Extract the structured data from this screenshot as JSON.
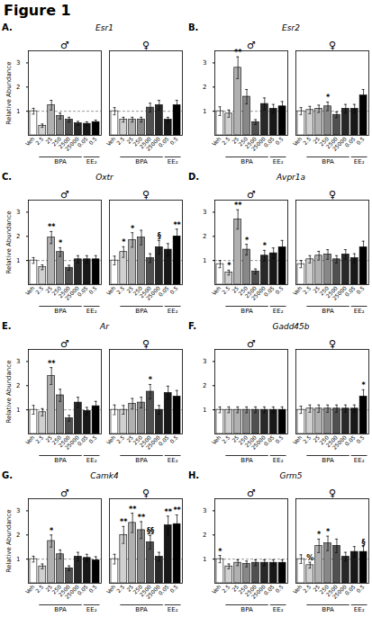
{
  "title": "Figure 1",
  "chart_data": [
    {
      "type": "bar",
      "title": "Esr1",
      "panel_label": "A.",
      "ylabel": "Relative Abundance",
      "categories": [
        "Veh",
        "2.5",
        "25",
        "250",
        "2500",
        "25000",
        "0.05",
        "0.5"
      ],
      "colors": [
        "white",
        "#d0d0d0",
        "#b0b0b0",
        "#888888",
        "#505050",
        "#282828",
        "#181818",
        "black"
      ],
      "series": [
        {
          "name": "♂",
          "values": [
            1.0,
            0.4,
            1.25,
            0.8,
            0.65,
            0.5,
            0.48,
            0.55
          ],
          "errors": [
            0.12,
            0.07,
            0.2,
            0.12,
            0.1,
            0.08,
            0.08,
            0.08
          ],
          "sig_labels": [
            null,
            null,
            null,
            null,
            null,
            null,
            null,
            null
          ]
        },
        {
          "name": "♀",
          "values": [
            1.0,
            0.65,
            0.65,
            0.65,
            1.15,
            1.25,
            0.65,
            1.25
          ],
          "errors": [
            0.15,
            0.1,
            0.1,
            0.1,
            0.18,
            0.2,
            0.1,
            0.2
          ],
          "sig_labels": [
            null,
            null,
            null,
            null,
            null,
            null,
            null,
            null
          ]
        }
      ],
      "brackets": [
        {
          "label": "BPA",
          "from": "2.5",
          "to": "25000"
        },
        {
          "label": "EE₂",
          "from": "0.05",
          "to": "0.5"
        }
      ],
      "reference_line": 1.0,
      "ylim": [
        0,
        3.5
      ],
      "yticks": [
        1,
        2,
        3
      ]
    },
    {
      "type": "bar",
      "title": "Esr2",
      "panel_label": "B.",
      "categories": [
        "Veh",
        "2.5",
        "25",
        "250",
        "2500",
        "25000",
        "0.05",
        "0.5"
      ],
      "colors": [
        "white",
        "#d0d0d0",
        "#b0b0b0",
        "#888888",
        "#505050",
        "#282828",
        "#181818",
        "black"
      ],
      "series": [
        {
          "name": "♂",
          "values": [
            1.0,
            0.9,
            2.8,
            1.6,
            0.55,
            1.3,
            1.1,
            1.2
          ],
          "errors": [
            0.18,
            0.15,
            0.45,
            0.3,
            0.1,
            0.25,
            0.18,
            0.2
          ],
          "sig_labels": [
            null,
            null,
            "**",
            null,
            null,
            null,
            null,
            null
          ]
        },
        {
          "name": "♀",
          "values": [
            1.0,
            1.05,
            1.1,
            1.2,
            0.85,
            1.1,
            1.1,
            1.65
          ],
          "errors": [
            0.15,
            0.15,
            0.15,
            0.18,
            0.12,
            0.18,
            0.18,
            0.25
          ],
          "sig_labels": [
            null,
            null,
            null,
            "*",
            null,
            null,
            null,
            null
          ]
        }
      ],
      "brackets": [
        {
          "label": "BPA",
          "from": "2.5",
          "to": "25000"
        },
        {
          "label": "EE₂",
          "from": "0.05",
          "to": "0.5"
        }
      ],
      "reference_line": 1.0,
      "ylim": [
        0,
        3.5
      ],
      "yticks": [
        1,
        2,
        3
      ]
    },
    {
      "type": "bar",
      "title": "Oxtr",
      "panel_label": "C.",
      "ylabel": "Relative Abundance",
      "categories": [
        "Veh",
        "2.5",
        "25",
        "250",
        "2500",
        "25000",
        "0.05",
        "0.5"
      ],
      "colors": [
        "white",
        "#d0d0d0",
        "#b0b0b0",
        "#888888",
        "#505050",
        "#282828",
        "#181818",
        "black"
      ],
      "series": [
        {
          "name": "♂",
          "values": [
            1.0,
            0.72,
            1.95,
            1.35,
            0.7,
            1.05,
            1.05,
            1.05
          ],
          "errors": [
            0.12,
            0.1,
            0.25,
            0.18,
            0.1,
            0.15,
            0.15,
            0.15
          ],
          "sig_labels": [
            null,
            null,
            "**",
            "*",
            null,
            null,
            null,
            null
          ]
        },
        {
          "name": "♀",
          "values": [
            1.0,
            1.35,
            1.85,
            1.95,
            1.1,
            1.55,
            1.45,
            2.0
          ],
          "errors": [
            0.18,
            0.22,
            0.3,
            0.3,
            0.18,
            0.28,
            0.25,
            0.3
          ],
          "sig_labels": [
            null,
            "*",
            "*",
            null,
            null,
            "§",
            null,
            "**"
          ]
        }
      ],
      "brackets": [
        {
          "label": "BPA",
          "from": "2.5",
          "to": "25000"
        },
        {
          "label": "EE₂",
          "from": "0.05",
          "to": "0.5"
        }
      ],
      "reference_line": 1.0,
      "ylim": [
        0,
        3.5
      ],
      "yticks": [
        1,
        2,
        3
      ]
    },
    {
      "type": "bar",
      "title": "Avpr1a",
      "panel_label": "D.",
      "categories": [
        "Veh",
        "2.5",
        "25",
        "250",
        "2500",
        "25000",
        "0.05",
        "0.5"
      ],
      "colors": [
        "white",
        "#d0d0d0",
        "#b0b0b0",
        "#888888",
        "#505050",
        "#282828",
        "#181818",
        "black"
      ],
      "series": [
        {
          "name": "♂",
          "values": [
            0.85,
            0.5,
            2.7,
            1.45,
            0.55,
            1.2,
            1.3,
            1.55
          ],
          "errors": [
            0.15,
            0.1,
            0.4,
            0.22,
            0.1,
            0.22,
            0.22,
            0.28
          ],
          "sig_labels": [
            null,
            "*",
            "**",
            "*",
            null,
            "*",
            null,
            null
          ]
        },
        {
          "name": "♀",
          "values": [
            0.85,
            1.05,
            1.2,
            1.25,
            1.05,
            1.25,
            1.1,
            1.55
          ],
          "errors": [
            0.15,
            0.15,
            0.18,
            0.2,
            0.15,
            0.2,
            0.18,
            0.25
          ],
          "sig_labels": [
            null,
            null,
            null,
            null,
            null,
            null,
            null,
            null
          ]
        }
      ],
      "brackets": [
        {
          "label": "BPA",
          "from": "2.5",
          "to": "25000"
        },
        {
          "label": "EE₂",
          "from": "0.05",
          "to": "0.5"
        }
      ],
      "reference_line": 1.0,
      "ylim": [
        0,
        3.5
      ],
      "yticks": [
        1,
        2,
        3
      ]
    },
    {
      "type": "bar",
      "title": "Ar",
      "panel_label": "E.",
      "ylabel": "Relative Abundance",
      "categories": [
        "Veh",
        "2.5",
        "25",
        "250",
        "2500",
        "25000",
        "0.05",
        "0.5"
      ],
      "colors": [
        "white",
        "#d0d0d0",
        "#b0b0b0",
        "#888888",
        "#505050",
        "#282828",
        "#181818",
        "black"
      ],
      "series": [
        {
          "name": "♂",
          "values": [
            1.0,
            0.9,
            2.4,
            1.6,
            0.65,
            1.3,
            0.95,
            1.15
          ],
          "errors": [
            0.18,
            0.15,
            0.35,
            0.25,
            0.12,
            0.22,
            0.15,
            0.2
          ],
          "sig_labels": [
            null,
            null,
            "**",
            null,
            null,
            null,
            null,
            null
          ]
        },
        {
          "name": "♀",
          "values": [
            1.0,
            1.0,
            1.25,
            1.3,
            1.75,
            1.0,
            1.7,
            1.55
          ],
          "errors": [
            0.2,
            0.18,
            0.22,
            0.22,
            0.3,
            0.18,
            0.28,
            0.25
          ],
          "sig_labels": [
            null,
            null,
            null,
            null,
            "*",
            null,
            null,
            null
          ]
        }
      ],
      "brackets": [
        {
          "label": "BPA",
          "from": "2.5",
          "to": "25000"
        },
        {
          "label": "EE₂",
          "from": "0.05",
          "to": "0.5"
        }
      ],
      "reference_line": 1.0,
      "ylim": [
        0,
        3.5
      ],
      "yticks": [
        1,
        2,
        3
      ]
    },
    {
      "type": "bar",
      "title": "Gadd45b",
      "panel_label": "F.",
      "categories": [
        "Veh",
        "2.5",
        "25",
        "250",
        "2500",
        "25000",
        "0.05",
        "0.5"
      ],
      "colors": [
        "white",
        "#d0d0d0",
        "#b0b0b0",
        "#888888",
        "#505050",
        "#282828",
        "#181818",
        "black"
      ],
      "series": [
        {
          "name": "♂",
          "values": [
            1.0,
            1.0,
            1.0,
            1.0,
            1.0,
            1.0,
            1.0,
            1.0
          ],
          "errors": [
            0.12,
            0.12,
            0.12,
            0.12,
            0.12,
            0.12,
            0.12,
            0.12
          ],
          "sig_labels": [
            null,
            null,
            null,
            null,
            null,
            null,
            null,
            null
          ]
        },
        {
          "name": "♀",
          "values": [
            1.0,
            1.05,
            1.05,
            1.05,
            1.05,
            1.05,
            1.05,
            1.55
          ],
          "errors": [
            0.15,
            0.15,
            0.15,
            0.15,
            0.15,
            0.15,
            0.15,
            0.28
          ],
          "sig_labels": [
            null,
            null,
            null,
            null,
            null,
            null,
            null,
            "*"
          ]
        }
      ],
      "brackets": [
        {
          "label": "BPA",
          "from": "2.5",
          "to": "25000"
        },
        {
          "label": "EE₂",
          "from": "0.05",
          "to": "0.5"
        }
      ],
      "reference_line": 1.0,
      "ylim": [
        0,
        3.5
      ],
      "yticks": [
        1,
        2,
        3
      ]
    },
    {
      "type": "bar",
      "title": "Camk4",
      "panel_label": "G.",
      "ylabel": "Relative Abundance",
      "categories": [
        "Veh",
        "2.5",
        "25",
        "250",
        "2500",
        "25000",
        "0.05",
        "0.5"
      ],
      "colors": [
        "white",
        "#d0d0d0",
        "#b0b0b0",
        "#888888",
        "#505050",
        "#282828",
        "#181818",
        "black"
      ],
      "series": [
        {
          "name": "♂",
          "values": [
            1.0,
            0.7,
            1.75,
            1.2,
            0.62,
            1.1,
            1.05,
            0.95
          ],
          "errors": [
            0.12,
            0.1,
            0.25,
            0.18,
            0.1,
            0.18,
            0.15,
            0.15
          ],
          "sig_labels": [
            null,
            null,
            "*",
            null,
            null,
            null,
            null,
            null
          ]
        },
        {
          "name": "♀",
          "values": [
            1.0,
            2.0,
            2.5,
            2.2,
            1.7,
            1.1,
            2.4,
            2.45
          ],
          "errors": [
            0.2,
            0.35,
            0.4,
            0.35,
            0.28,
            0.18,
            0.38,
            0.38
          ],
          "sig_labels": [
            null,
            "**",
            "**",
            "**",
            "§§",
            null,
            "**",
            "**"
          ]
        }
      ],
      "brackets": [
        {
          "label": "BPA",
          "from": "2.5",
          "to": "25000"
        },
        {
          "label": "EE₂",
          "from": "0.05",
          "to": "0.5"
        }
      ],
      "reference_line": 1.0,
      "ylim": [
        0,
        3.5
      ],
      "yticks": [
        1,
        2,
        3
      ]
    },
    {
      "type": "bar",
      "title": "Grm5",
      "panel_label": "H.",
      "categories": [
        "Veh",
        "2.5",
        "25",
        "250",
        "2500",
        "25000",
        "0.05",
        "0.5"
      ],
      "colors": [
        "white",
        "#d0d0d0",
        "#b0b0b0",
        "#888888",
        "#505050",
        "#282828",
        "#181818",
        "black"
      ],
      "series": [
        {
          "name": "♂",
          "values": [
            1.0,
            0.7,
            0.85,
            0.8,
            0.85,
            0.85,
            0.85,
            0.85
          ],
          "errors": [
            0.15,
            0.1,
            0.12,
            0.12,
            0.12,
            0.12,
            0.12,
            0.12
          ],
          "sig_labels": [
            "*",
            null,
            null,
            null,
            null,
            null,
            null,
            null
          ]
        },
        {
          "name": "♀",
          "values": [
            1.0,
            0.75,
            1.55,
            1.65,
            1.55,
            1.1,
            1.3,
            1.3
          ],
          "errors": [
            0.18,
            0.12,
            0.28,
            0.3,
            0.28,
            0.18,
            0.22,
            0.22
          ],
          "sig_labels": [
            null,
            "%",
            "*",
            "*",
            null,
            null,
            null,
            "§"
          ]
        }
      ],
      "brackets": [
        {
          "label": "BPA",
          "from": "2.5",
          "to": "25000"
        },
        {
          "label": "EE₂",
          "from": "0.05",
          "to": "0.5"
        }
      ],
      "reference_line": 1.0,
      "ylim": [
        0,
        3.5
      ],
      "yticks": [
        1,
        2,
        3
      ]
    }
  ]
}
